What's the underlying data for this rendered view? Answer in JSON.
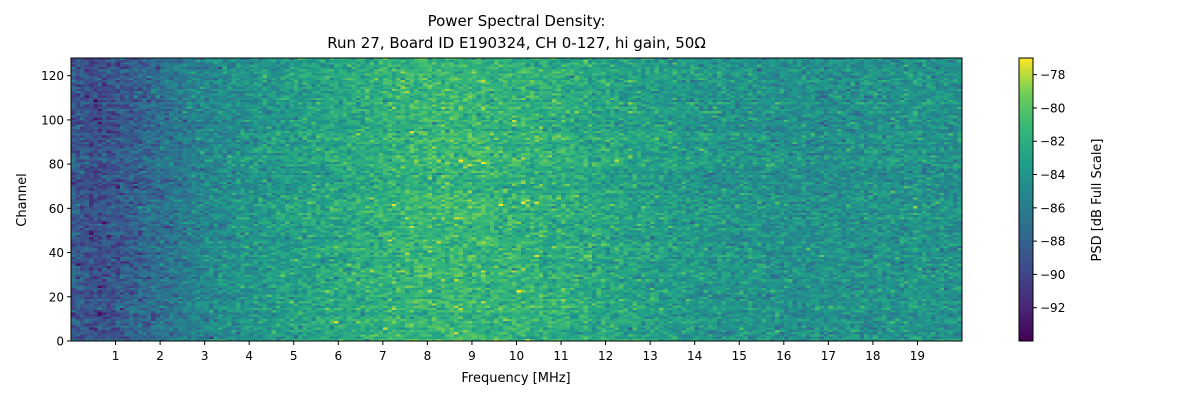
{
  "chart_data": {
    "type": "heatmap",
    "title": [
      "Power Spectral Density:",
      "Run 27, Board ID E190324, CH 0-127, hi gain, 50Ω"
    ],
    "xlabel": "Frequency [MHz]",
    "ylabel": "Channel",
    "xlim": [
      0,
      20
    ],
    "ylim": [
      0,
      128
    ],
    "x_ticks": [
      1,
      2,
      3,
      4,
      5,
      6,
      7,
      8,
      9,
      10,
      11,
      12,
      13,
      14,
      15,
      16,
      17,
      18,
      19
    ],
    "y_ticks": [
      0,
      20,
      40,
      60,
      80,
      100,
      120
    ],
    "colormap": "viridis",
    "colorbar": {
      "label": "PSD [dB Full Scale]",
      "range": [
        -94,
        -77
      ],
      "ticks": [
        -78,
        -80,
        -82,
        -84,
        -86,
        -88,
        -90,
        -92
      ]
    },
    "n_channels": 128,
    "profile_x_mhz": [
      0.0,
      0.5,
      1.0,
      1.5,
      2.0,
      2.5,
      3.0,
      3.5,
      4.0,
      5.0,
      6.0,
      7.0,
      8.0,
      9.0,
      10.0,
      11.0,
      12.0,
      13.0,
      14.0,
      15.0,
      16.0,
      17.0,
      18.0,
      19.0,
      20.0
    ],
    "profile_psd_db": [
      -88.5,
      -89.5,
      -89.0,
      -88.0,
      -87.0,
      -86.0,
      -85.2,
      -84.6,
      -84.0,
      -83.2,
      -82.6,
      -81.8,
      -81.2,
      -81.3,
      -81.6,
      -82.0,
      -82.6,
      -83.2,
      -83.7,
      -84.1,
      -84.3,
      -84.4,
      -84.2,
      -84.0,
      -84.3
    ],
    "noise_std_db": 1.3
  }
}
